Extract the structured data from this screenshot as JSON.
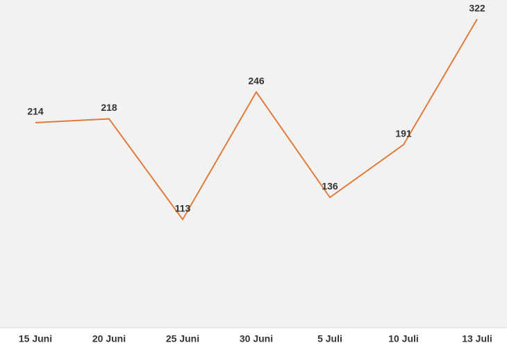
{
  "chart_data": {
    "type": "line",
    "categories": [
      "15 Juni",
      "20 Juni",
      "25 Juni",
      "30 Juni",
      "5 Juli",
      "10 Juli",
      "13 Juli"
    ],
    "series": [
      {
        "color": "#e07b39",
        "values": [
          214,
          218,
          113,
          246,
          136,
          191,
          322
        ]
      }
    ],
    "ylim": [
      0,
      342
    ]
  }
}
